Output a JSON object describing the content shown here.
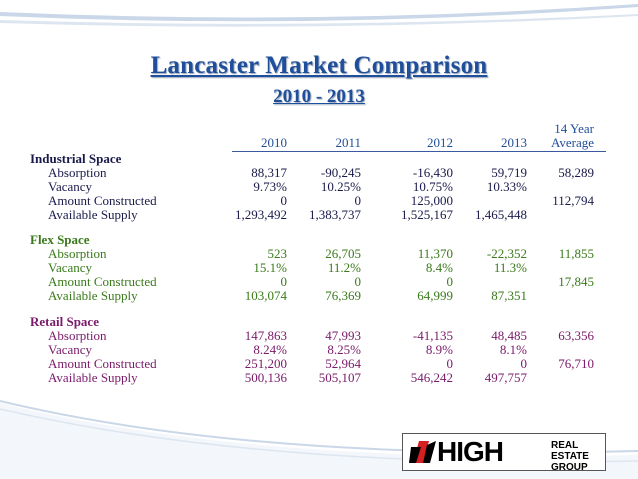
{
  "title": "Lancaster Market Comparison",
  "subtitle": "2010 - 2013",
  "columns": {
    "c2010": "2010",
    "c2011": "2011",
    "c2012": "2012",
    "c2013": "2013",
    "avg_line1": "14 Year",
    "avg_line2": "Average"
  },
  "sections": [
    {
      "name": "Industrial Space",
      "rows": [
        {
          "label": "Absorption",
          "v2010": "88,317",
          "v2011": "-90,245",
          "v2012": "-16,430",
          "v2013": "59,719",
          "avg": "58,289"
        },
        {
          "label": "Vacancy",
          "v2010": "9.73%",
          "v2011": "10.25%",
          "v2012": "10.75%",
          "v2013": "10.33%",
          "avg": ""
        },
        {
          "label": "Amount Constructed",
          "v2010": "0",
          "v2011": "0",
          "v2012": "125,000",
          "v2013": "",
          "avg": "112,794"
        },
        {
          "label": "Available Supply",
          "v2010": "1,293,492",
          "v2011": "1,383,737",
          "v2012": "1,525,167",
          "v2013": "1,465,448",
          "avg": ""
        }
      ]
    },
    {
      "name": "Flex Space",
      "rows": [
        {
          "label": "Absorption",
          "v2010": "523",
          "v2011": "26,705",
          "v2012": "11,370",
          "v2013": "-22,352",
          "avg": "11,855"
        },
        {
          "label": "Vacancy",
          "v2010": "15.1%",
          "v2011": "11.2%",
          "v2012": "8.4%",
          "v2013": "11.3%",
          "avg": ""
        },
        {
          "label": "Amount Constructed",
          "v2010": "0",
          "v2011": "0",
          "v2012": "0",
          "v2013": "",
          "avg": "17,845"
        },
        {
          "label": "Available Supply",
          "v2010": "103,074",
          "v2011": "76,369",
          "v2012": "64,999",
          "v2013": "87,351",
          "avg": ""
        }
      ]
    },
    {
      "name": "Retail Space",
      "rows": [
        {
          "label": "Absorption",
          "v2010": "147,863",
          "v2011": "47,993",
          "v2012": "-41,135",
          "v2013": "48,485",
          "avg": "63,356"
        },
        {
          "label": "Vacancy",
          "v2010": "8.24%",
          "v2011": "8.25%",
          "v2012": "8.9%",
          "v2013": "8.1%",
          "avg": ""
        },
        {
          "label": "Amount Constructed",
          "v2010": "251,200",
          "v2011": "52,964",
          "v2012": "0",
          "v2013": "0",
          "avg": "76,710"
        },
        {
          "label": "Available Supply",
          "v2010": "500,136",
          "v2011": "505,107",
          "v2012": "546,242",
          "v2013": "497,757",
          "avg": ""
        }
      ]
    }
  ],
  "logo": {
    "word": "HIGH",
    "line1": "REAL ESTATE",
    "line2": "GROUP"
  },
  "colors": {
    "title": "#1f4e9a",
    "industrial": "#1a1a4a",
    "flex": "#3a7a1a",
    "retail": "#7a1a6a",
    "logo_red": "#d42020"
  }
}
